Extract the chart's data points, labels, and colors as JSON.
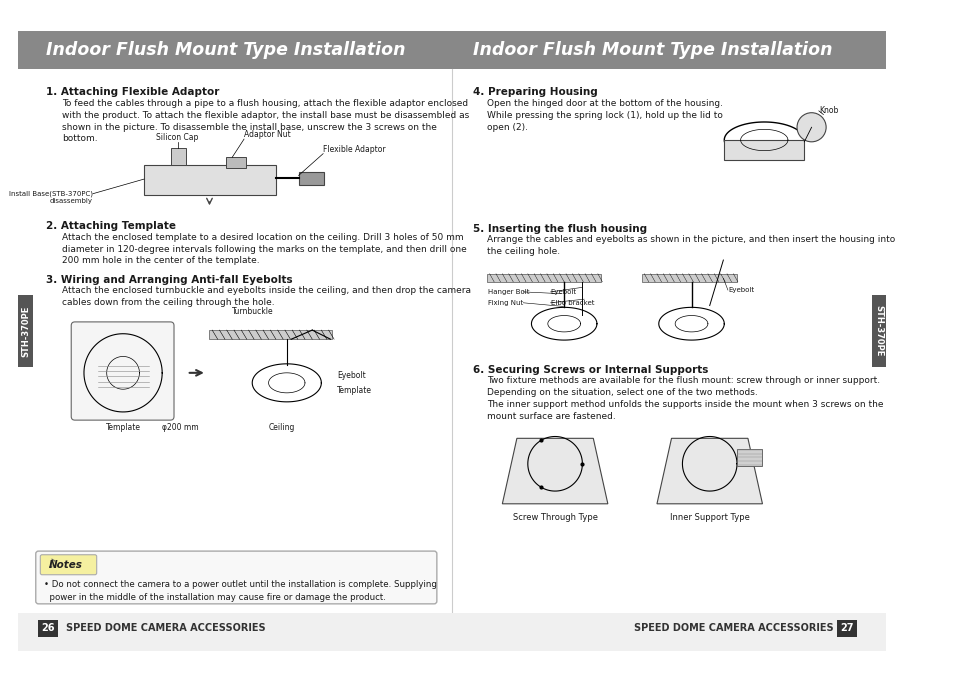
{
  "header_bg": "#888888",
  "header_text_color": "#ffffff",
  "header_left": "Indoor Flush Mount Type Installation",
  "header_right": "Indoor Flush Mount Type Installation",
  "page_bg": "#ffffff",
  "body_text_color": "#1a1a1a",
  "left_side_tab_text": "STH-370PE",
  "right_side_tab_text": "STH-370PE",
  "side_tab_bg": "#555555",
  "side_tab_text_color": "#ffffff",
  "footer_left_page": "26",
  "footer_left_text": "SPEED DOME CAMERA ACCESSORIES",
  "footer_right_page": "27",
  "footer_right_text": "SPEED DOME CAMERA ACCESSORIES",
  "footer_bg": "#333333",
  "footer_text_color": "#ffffff",
  "left_content": {
    "section1_title": "1. Attaching Flexible Adaptor",
    "section1_body": "To feed the cables through a pipe to a flush housing, attach the flexible adaptor enclosed\nwith the product. To attach the flexible adaptor, the install base must be disassembled as\nshown in the picture. To disassemble the install base, unscrew the 3 screws on the\nbottom.",
    "section2_title": "2. Attaching Template",
    "section2_body": "Attach the enclosed template to a desired location on the ceiling. Drill 3 holes of 50 mm\ndiameter in 120-degree intervals following the marks on the template, and then drill one\n200 mm hole in the center of the template.",
    "section3_title": "3. Wiring and Arranging Anti-fall Eyebolts",
    "section3_body": "Attach the enclosed turnbuckle and eyebolts inside the ceiling, and then drop the camera\ncables down from the ceiling through the hole.",
    "notes_title": "Notes",
    "notes_body": "• Do not connect the camera to a power outlet until the installation is complete. Supplying\n  power in the middle of the installation may cause fire or damage the product."
  },
  "right_content": {
    "section4_title": "4. Preparing Housing",
    "section4_body": "Open the hinged door at the bottom of the housing.\nWhile pressing the spring lock (1), hold up the lid to\nopen (2).",
    "section5_title": "5. Inserting the flush housing",
    "section5_body": "Arrange the cables and eyebolts as shown in the picture, and then insert the housing into\nthe ceiling hole.",
    "section6_title": "6. Securing Screws or Internal Supports",
    "section6_body": "Two fixture methods are available for the flush mount: screw through or inner support.\nDepending on the situation, select one of the two methods.\nThe inner support method unfolds the supports inside the mount when 3 screws on the\nmount surface are fastened.",
    "label_screw_through": "Screw Through Type",
    "label_inner_support": "Inner Support Type",
    "label_knob": "Knob",
    "label_hanger_bolt": "Hanger Bolt",
    "label_fixing_nut": "Fixing Nut",
    "label_eyebolt1": "Eyebolt",
    "label_elbo": "Elbo bracket",
    "label_eyebolt2": "Eyebolt"
  }
}
